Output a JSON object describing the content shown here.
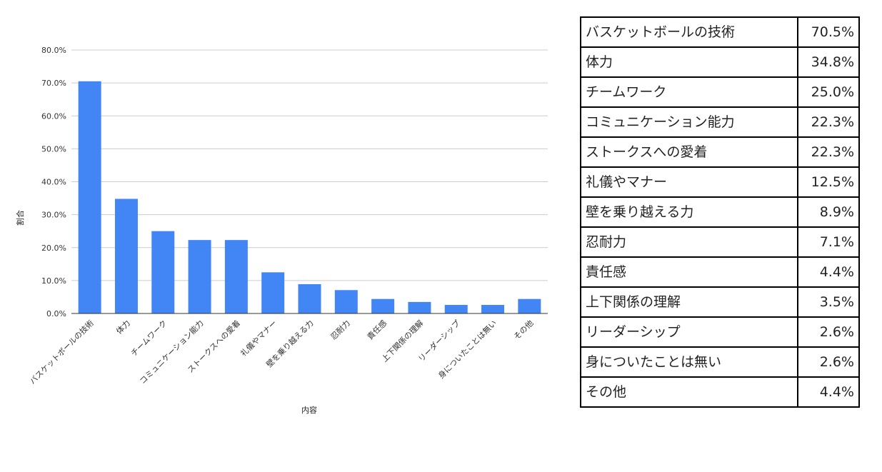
{
  "chart_data": {
    "type": "bar",
    "categories": [
      "バスケットボールの技術",
      "体力",
      "チームワーク",
      "コミュニケーション能力",
      "ストークスへの愛着",
      "礼儀やマナー",
      "壁を乗り越える力",
      "忍耐力",
      "責任感",
      "上下関係の理解",
      "リーダーシップ",
      "身についたことは無い",
      "その他"
    ],
    "values": [
      70.5,
      34.8,
      25.0,
      22.3,
      22.3,
      12.5,
      8.9,
      7.1,
      4.4,
      3.5,
      2.6,
      2.6,
      4.4
    ],
    "xlabel": "内容",
    "ylabel": "割合",
    "ylim": [
      0,
      80
    ],
    "yticks": [
      "0.0%",
      "10.0%",
      "20.0%",
      "30.0%",
      "40.0%",
      "50.0%",
      "60.0%",
      "70.0%",
      "80.0%"
    ],
    "grid": true,
    "bar_color": "#4285f4"
  },
  "table": {
    "rows": [
      {
        "label": "バスケットボールの技術",
        "value": "70.5%"
      },
      {
        "label": "体力",
        "value": "34.8%"
      },
      {
        "label": "チームワーク",
        "value": "25.0%"
      },
      {
        "label": "コミュニケーション能力",
        "value": "22.3%"
      },
      {
        "label": "ストークスへの愛着",
        "value": "22.3%"
      },
      {
        "label": "礼儀やマナー",
        "value": "12.5%"
      },
      {
        "label": "壁を乗り越える力",
        "value": "8.9%"
      },
      {
        "label": "忍耐力",
        "value": "7.1%"
      },
      {
        "label": "責任感",
        "value": "4.4%"
      },
      {
        "label": "上下関係の理解",
        "value": "3.5%"
      },
      {
        "label": "リーダーシップ",
        "value": "2.6%"
      },
      {
        "label": "身についたことは無い",
        "value": "2.6%"
      },
      {
        "label": "その他",
        "value": "4.4%"
      }
    ]
  }
}
